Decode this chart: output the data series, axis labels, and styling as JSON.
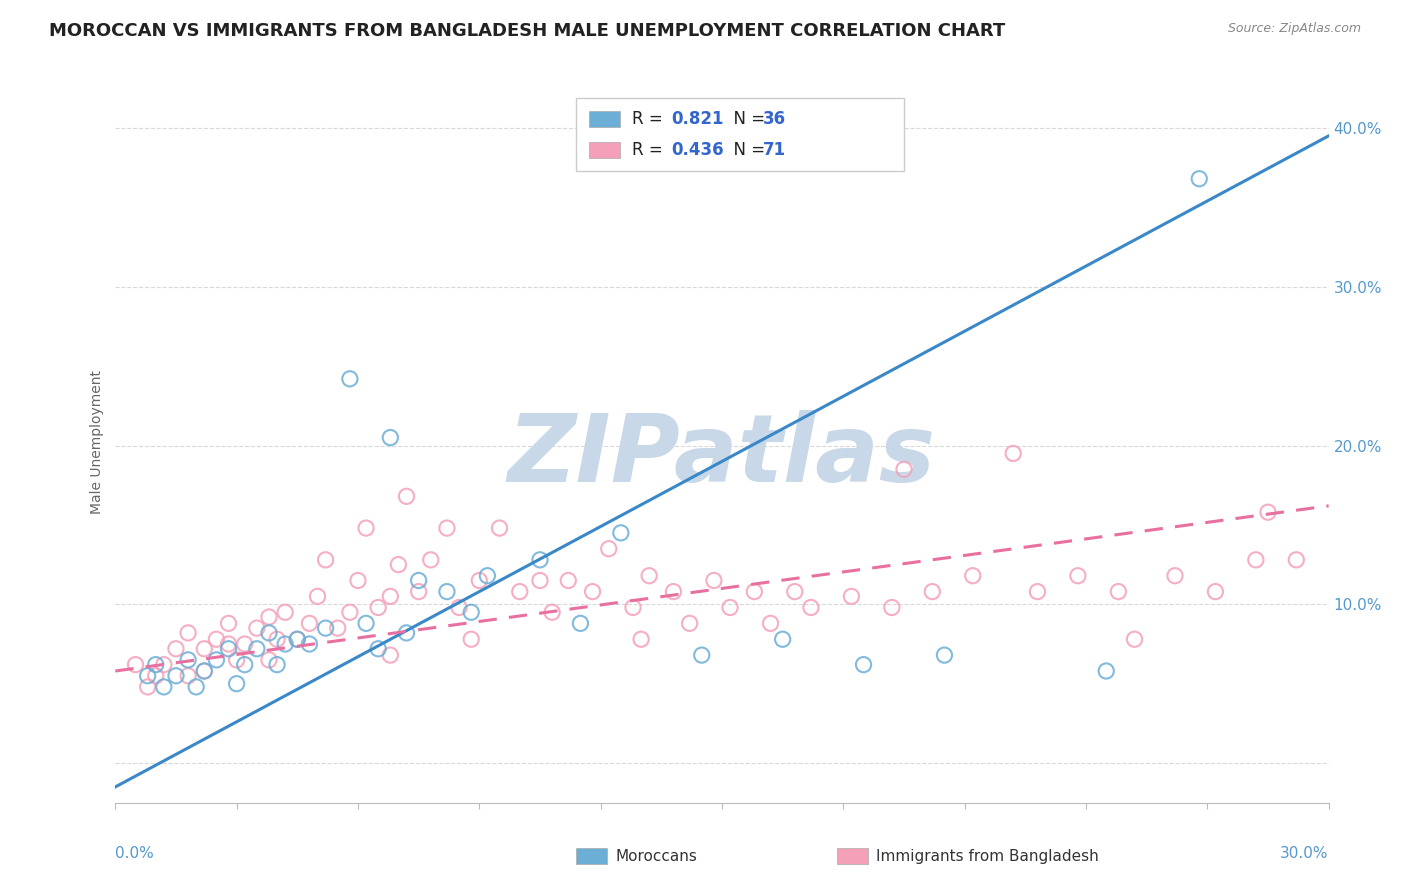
{
  "title": "MOROCCAN VS IMMIGRANTS FROM BANGLADESH MALE UNEMPLOYMENT CORRELATION CHART",
  "source": "Source: ZipAtlas.com",
  "ylabel": "Male Unemployment",
  "xmin": 0.0,
  "xmax": 0.3,
  "ymin": -0.025,
  "ymax": 0.43,
  "yticks_right": [
    0.0,
    0.1,
    0.2,
    0.3,
    0.4
  ],
  "ytick_labels_right": [
    "",
    "10.0%",
    "20.0%",
    "30.0%",
    "40.0%"
  ],
  "blue_R": "0.821",
  "blue_N": "36",
  "pink_R": "0.436",
  "pink_N": "71",
  "blue_marker_color": "#6baed6",
  "pink_marker_color": "#f4a0b8",
  "blue_line_color": "#3a88c8",
  "pink_line_color": "#e870a0",
  "watermark_text": "ZIPatlas",
  "watermark_color": "#c8d8e8",
  "legend_label_blue": "Moroccans",
  "legend_label_pink": "Immigrants from Bangladesh",
  "blue_scatter_x": [
    0.008,
    0.01,
    0.012,
    0.015,
    0.018,
    0.02,
    0.022,
    0.025,
    0.028,
    0.03,
    0.032,
    0.035,
    0.038,
    0.04,
    0.042,
    0.045,
    0.048,
    0.052,
    0.058,
    0.062,
    0.065,
    0.068,
    0.072,
    0.075,
    0.082,
    0.088,
    0.092,
    0.105,
    0.115,
    0.125,
    0.145,
    0.165,
    0.185,
    0.205,
    0.245,
    0.268
  ],
  "blue_scatter_y": [
    0.055,
    0.062,
    0.048,
    0.055,
    0.065,
    0.048,
    0.058,
    0.065,
    0.072,
    0.05,
    0.062,
    0.072,
    0.082,
    0.062,
    0.075,
    0.078,
    0.075,
    0.085,
    0.242,
    0.088,
    0.072,
    0.205,
    0.082,
    0.115,
    0.108,
    0.095,
    0.118,
    0.128,
    0.088,
    0.145,
    0.068,
    0.078,
    0.062,
    0.068,
    0.058,
    0.368
  ],
  "pink_scatter_x": [
    0.005,
    0.008,
    0.01,
    0.012,
    0.015,
    0.018,
    0.018,
    0.022,
    0.022,
    0.025,
    0.028,
    0.028,
    0.03,
    0.032,
    0.035,
    0.038,
    0.038,
    0.04,
    0.042,
    0.045,
    0.048,
    0.05,
    0.052,
    0.055,
    0.058,
    0.06,
    0.062,
    0.065,
    0.068,
    0.07,
    0.072,
    0.075,
    0.078,
    0.082,
    0.085,
    0.09,
    0.095,
    0.1,
    0.105,
    0.108,
    0.112,
    0.118,
    0.122,
    0.128,
    0.132,
    0.138,
    0.142,
    0.148,
    0.152,
    0.158,
    0.162,
    0.168,
    0.172,
    0.182,
    0.192,
    0.202,
    0.212,
    0.222,
    0.228,
    0.238,
    0.248,
    0.252,
    0.262,
    0.272,
    0.282,
    0.285,
    0.292,
    0.195,
    0.13,
    0.088,
    0.068
  ],
  "pink_scatter_y": [
    0.062,
    0.048,
    0.055,
    0.062,
    0.072,
    0.082,
    0.055,
    0.058,
    0.072,
    0.078,
    0.075,
    0.088,
    0.065,
    0.075,
    0.085,
    0.065,
    0.092,
    0.078,
    0.095,
    0.078,
    0.088,
    0.105,
    0.128,
    0.085,
    0.095,
    0.115,
    0.148,
    0.098,
    0.105,
    0.125,
    0.168,
    0.108,
    0.128,
    0.148,
    0.098,
    0.115,
    0.148,
    0.108,
    0.115,
    0.095,
    0.115,
    0.108,
    0.135,
    0.098,
    0.118,
    0.108,
    0.088,
    0.115,
    0.098,
    0.108,
    0.088,
    0.108,
    0.098,
    0.105,
    0.098,
    0.108,
    0.118,
    0.195,
    0.108,
    0.118,
    0.108,
    0.078,
    0.118,
    0.108,
    0.128,
    0.158,
    0.128,
    0.185,
    0.078,
    0.078,
    0.068
  ],
  "blue_trendline_x": [
    0.0,
    0.3
  ],
  "blue_trendline_y": [
    -0.015,
    0.395
  ],
  "pink_trendline_x": [
    0.0,
    0.3
  ],
  "pink_trendline_y": [
    0.058,
    0.162
  ],
  "grid_color": "#d8d8d8",
  "background_color": "#ffffff",
  "title_fontsize": 13,
  "tick_label_color": "#5599cc",
  "value_text_color": "#3366cc",
  "label_text_color": "#333333"
}
